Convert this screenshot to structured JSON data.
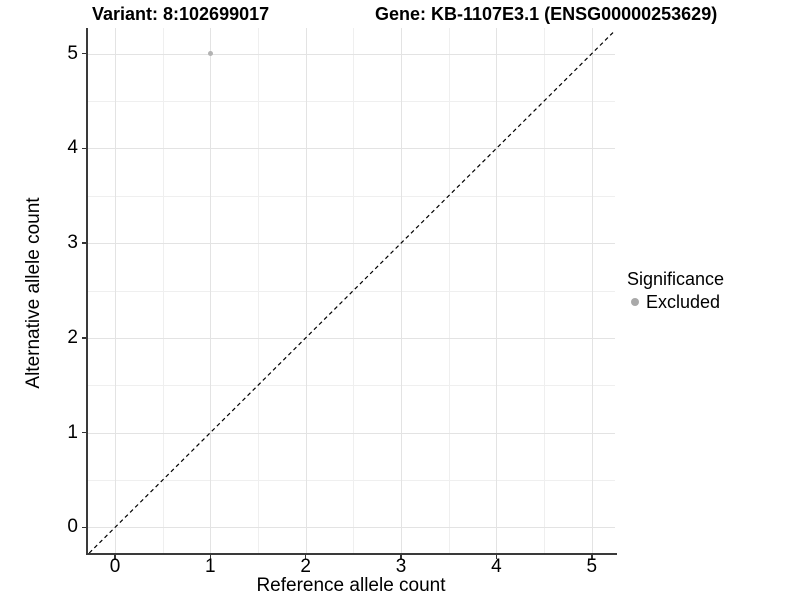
{
  "titles": {
    "variant": "Variant: 8:102699017",
    "gene": "Gene: KB-1107E3.1 (ENSG00000253629)"
  },
  "legend": {
    "title": "Significance",
    "items": [
      {
        "label": "Excluded",
        "color": "#a9a9a9"
      }
    ]
  },
  "chart_data": {
    "type": "scatter",
    "x": {
      "label": "Reference allele count",
      "ticks": [
        0,
        1,
        2,
        3,
        4,
        5
      ],
      "minor_ticks": [
        0.5,
        1.5,
        2.5,
        3.5,
        4.5
      ],
      "lim": [
        -0.283,
        5.243
      ]
    },
    "y": {
      "label": "Alternative allele count",
      "ticks": [
        0,
        1,
        2,
        3,
        4,
        5
      ],
      "minor_ticks": [
        0.5,
        1.5,
        2.5,
        3.5,
        4.5
      ],
      "lim": [
        -0.27,
        5.27
      ]
    },
    "series": [
      {
        "name": "Excluded",
        "color": "#b3b3b3",
        "point_size": 5,
        "points": [
          {
            "x": 1,
            "y": 5
          }
        ]
      }
    ],
    "reference_line": {
      "type": "identity",
      "line_style": "dashed",
      "color": "#000000",
      "dash": "4,3.2"
    },
    "grid": {
      "major_color": "#e3e3e3",
      "minor_color": "#efefef"
    },
    "legend_position": "right",
    "background": "#ffffff"
  }
}
